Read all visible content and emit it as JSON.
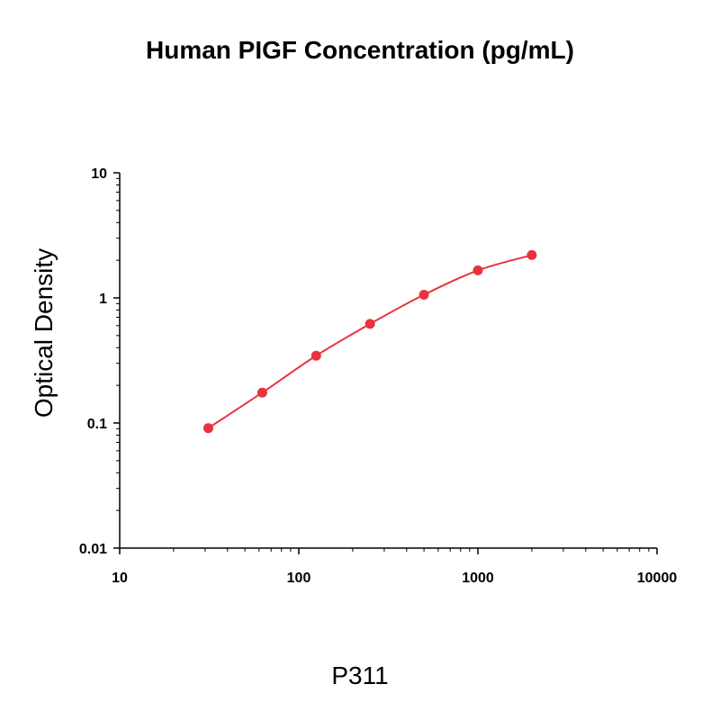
{
  "chart_data": {
    "type": "scatter",
    "title": "Human PIGF Concentration (pg/mL)",
    "xlabel": "",
    "ylabel": "Optical Density",
    "footer": "P311",
    "x_scale": "log",
    "y_scale": "log",
    "xlim": [
      10,
      10000
    ],
    "ylim": [
      0.01,
      10
    ],
    "x_ticks": [
      "10",
      "100",
      "1000",
      "10000"
    ],
    "y_ticks": [
      "0.01",
      "0.1",
      "1",
      "10"
    ],
    "grid": false,
    "legend": "none",
    "series": [
      {
        "x": [
          31.25,
          62.5,
          125,
          250,
          500,
          1000,
          2000
        ],
        "y": [
          0.091,
          0.175,
          0.345,
          0.62,
          1.06,
          1.66,
          2.2
        ]
      }
    ],
    "colors": {
      "series": "#e8333f",
      "axis": "#000000"
    }
  }
}
